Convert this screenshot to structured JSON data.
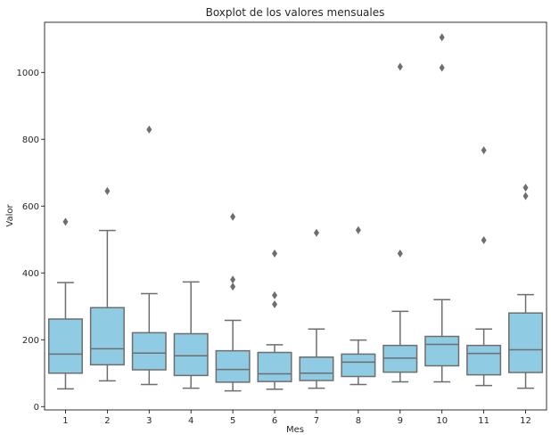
{
  "chart_data": {
    "type": "boxplot",
    "title": "Boxplot de los valores mensuales",
    "xlabel": "Mes",
    "ylabel": "Valor",
    "ylim": [
      -10,
      1150
    ],
    "yticks": [
      0,
      200,
      400,
      600,
      800,
      1000
    ],
    "grid": false,
    "colors": {
      "box_fill": "#8fcbe3",
      "line": "#6e6e6e",
      "outlier": "#6e6e6e"
    },
    "categories": [
      "1",
      "2",
      "3",
      "4",
      "5",
      "6",
      "7",
      "8",
      "9",
      "10",
      "11",
      "12"
    ],
    "boxes": [
      {
        "month": "1",
        "whisker_low": 53,
        "q1": 100,
        "median": 157,
        "q3": 262,
        "whisker_high": 371,
        "outliers": [
          553
        ]
      },
      {
        "month": "2",
        "whisker_low": 77,
        "q1": 125,
        "median": 173,
        "q3": 296,
        "whisker_high": 527,
        "outliers": [
          645
        ]
      },
      {
        "month": "3",
        "whisker_low": 66,
        "q1": 110,
        "median": 160,
        "q3": 221,
        "whisker_high": 338,
        "outliers": [
          829
        ]
      },
      {
        "month": "4",
        "whisker_low": 55,
        "q1": 93,
        "median": 152,
        "q3": 218,
        "whisker_high": 373,
        "outliers": []
      },
      {
        "month": "5",
        "whisker_low": 47,
        "q1": 73,
        "median": 111,
        "q3": 167,
        "whisker_high": 258,
        "outliers": [
          359,
          380,
          568
        ]
      },
      {
        "month": "6",
        "whisker_low": 52,
        "q1": 75,
        "median": 98,
        "q3": 162,
        "whisker_high": 185,
        "outliers": [
          306,
          333,
          458
        ]
      },
      {
        "month": "7",
        "whisker_low": 55,
        "q1": 78,
        "median": 100,
        "q3": 148,
        "whisker_high": 232,
        "outliers": [
          520
        ]
      },
      {
        "month": "8",
        "whisker_low": 66,
        "q1": 90,
        "median": 133,
        "q3": 157,
        "whisker_high": 199,
        "outliers": [
          528
        ]
      },
      {
        "month": "9",
        "whisker_low": 74,
        "q1": 103,
        "median": 145,
        "q3": 183,
        "whisker_high": 285,
        "outliers": [
          458,
          1017
        ]
      },
      {
        "month": "10",
        "whisker_low": 74,
        "q1": 122,
        "median": 186,
        "q3": 210,
        "whisker_high": 320,
        "outliers": [
          1014,
          1105
        ]
      },
      {
        "month": "11",
        "whisker_low": 63,
        "q1": 95,
        "median": 159,
        "q3": 183,
        "whisker_high": 232,
        "outliers": [
          498,
          767
        ]
      },
      {
        "month": "12",
        "whisker_low": 55,
        "q1": 102,
        "median": 170,
        "q3": 280,
        "whisker_high": 335,
        "outliers": [
          630,
          655
        ]
      }
    ]
  }
}
